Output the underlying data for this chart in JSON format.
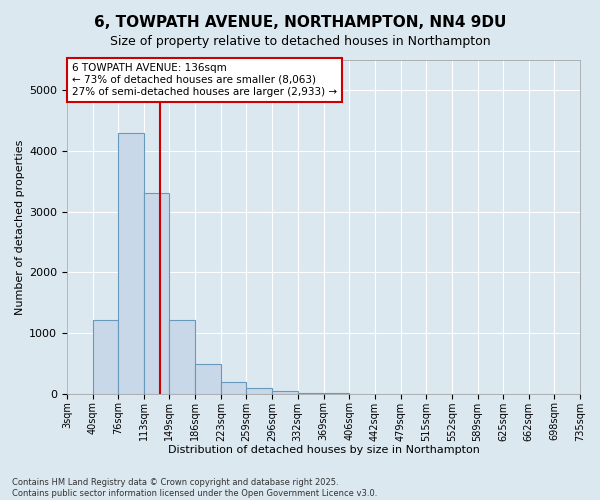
{
  "title": "6, TOWPATH AVENUE, NORTHAMPTON, NN4 9DU",
  "subtitle": "Size of property relative to detached houses in Northampton",
  "xlabel": "Distribution of detached houses by size in Northampton",
  "ylabel": "Number of detached properties",
  "footer_line1": "Contains HM Land Registry data © Crown copyright and database right 2025.",
  "footer_line2": "Contains public sector information licensed under the Open Government Licence v3.0.",
  "bin_edges": [
    3,
    40,
    76,
    113,
    149,
    186,
    223,
    259,
    296,
    332,
    369,
    406,
    442,
    479,
    515,
    552,
    589,
    625,
    662,
    698,
    735
  ],
  "bin_labels": [
    "3sqm",
    "40sqm",
    "76sqm",
    "113sqm",
    "149sqm",
    "186sqm",
    "223sqm",
    "259sqm",
    "296sqm",
    "332sqm",
    "369sqm",
    "406sqm",
    "442sqm",
    "479sqm",
    "515sqm",
    "552sqm",
    "589sqm",
    "625sqm",
    "662sqm",
    "698sqm",
    "735sqm"
  ],
  "counts": [
    0,
    1220,
    4300,
    3300,
    1220,
    490,
    200,
    100,
    50,
    15,
    5,
    2,
    0,
    0,
    0,
    0,
    0,
    0,
    0,
    0
  ],
  "bar_color": "#c8d8e8",
  "bar_edge_color": "#6699bb",
  "property_size": 136,
  "property_line_color": "#cc0000",
  "annotation_line1": "6 TOWPATH AVENUE: 136sqm",
  "annotation_line2": "← 73% of detached houses are smaller (8,063)",
  "annotation_line3": "27% of semi-detached houses are larger (2,933) →",
  "annotation_box_facecolor": "#ffffff",
  "annotation_box_edgecolor": "#cc0000",
  "ylim_max": 5500,
  "bg_color": "#dce8f0",
  "grid_color": "#ffffff",
  "title_fontsize": 11,
  "subtitle_fontsize": 9,
  "xlabel_fontsize": 8,
  "ylabel_fontsize": 8,
  "tick_fontsize": 7,
  "annotation_fontsize": 7.5,
  "footer_fontsize": 6
}
